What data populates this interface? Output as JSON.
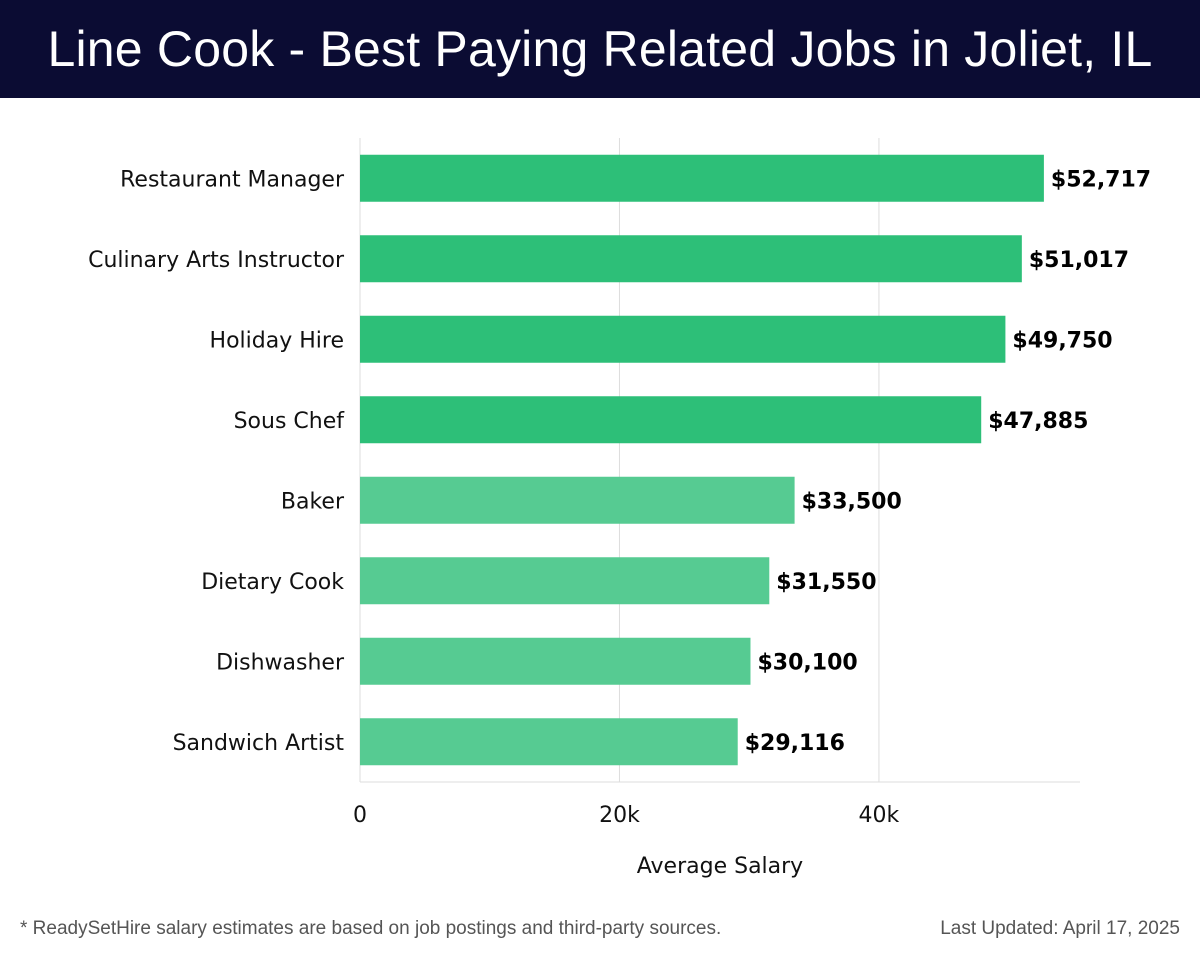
{
  "header": {
    "title": "Line Cook - Best Paying Related Jobs in Joliet, IL"
  },
  "colors": {
    "header_bg": "#0b0c33",
    "bar_primary": "#2dbf78",
    "bar_secondary": "#56cb92",
    "grid": "#dddddd"
  },
  "chart_data": {
    "type": "bar",
    "orientation": "horizontal",
    "title": "Line Cook - Best Paying Related Jobs in Joliet, IL",
    "xlabel": "Average Salary",
    "ylabel": "",
    "xlim": [
      0,
      55500
    ],
    "xticks": [
      {
        "value": 0,
        "label": "0"
      },
      {
        "value": 20000,
        "label": "20k"
      },
      {
        "value": 40000,
        "label": "40k"
      }
    ],
    "grid": true,
    "categories": [
      "Restaurant Manager",
      "Culinary Arts Instructor",
      "Holiday Hire",
      "Sous Chef",
      "Baker",
      "Dietary Cook",
      "Dishwasher",
      "Sandwich Artist"
    ],
    "values": [
      52717,
      51017,
      49750,
      47885,
      33500,
      31550,
      30100,
      29116
    ],
    "value_labels": [
      "$52,717",
      "$51,017",
      "$49,750",
      "$47,885",
      "$33,500",
      "$31,550",
      "$30,100",
      "$29,116"
    ],
    "highlight_count": 4
  },
  "footer": {
    "note": "* ReadySetHire salary estimates are based on job postings and third-party sources.",
    "updated": "Last Updated: April 17, 2025"
  }
}
